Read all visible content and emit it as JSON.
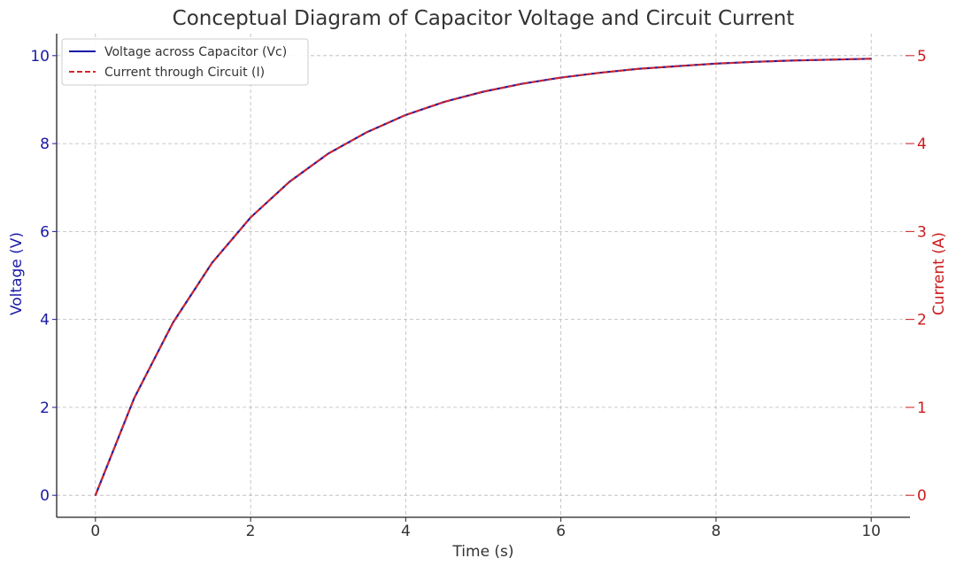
{
  "chart_data": {
    "type": "line",
    "title": "Conceptual Diagram of Capacitor Voltage and Circuit Current",
    "xlabel": "Time (s)",
    "ylabel_left": "Voltage (V)",
    "ylabel_right": "Current (A)",
    "xlim": [
      -0.5,
      10.5
    ],
    "ylim_left": [
      -0.5,
      10.5
    ],
    "ylim_right": [
      -0.25,
      5.25
    ],
    "x_ticks": [
      0,
      2,
      4,
      6,
      8,
      10
    ],
    "y_left_ticks": [
      0,
      2,
      4,
      6,
      8,
      10
    ],
    "y_right_ticks": [
      0,
      1,
      2,
      3,
      4,
      5
    ],
    "grid": true,
    "legend_position": "top-left",
    "colors": {
      "voltage": "#1a1aa6",
      "current": "#d62728",
      "left_axis_text": "#1a1aa6",
      "right_axis_text": "#cc1a1a"
    },
    "x": [
      0,
      0.5,
      1,
      1.5,
      2,
      2.5,
      3,
      3.5,
      4,
      4.5,
      5,
      5.5,
      6,
      6.5,
      7,
      7.5,
      8,
      8.5,
      9,
      9.5,
      10
    ],
    "series": [
      {
        "name": "Voltage across Capacitor (Vc)",
        "axis": "left",
        "style": "solid",
        "values": [
          0,
          2.21,
          3.93,
          5.28,
          6.32,
          7.13,
          7.77,
          8.26,
          8.65,
          8.95,
          9.18,
          9.36,
          9.5,
          9.61,
          9.7,
          9.76,
          9.82,
          9.86,
          9.89,
          9.91,
          9.93
        ]
      },
      {
        "name": "Current through Circuit (I)",
        "axis": "right",
        "style": "dashed",
        "values": [
          0,
          1.105,
          1.965,
          2.64,
          3.16,
          3.565,
          3.885,
          4.13,
          4.325,
          4.475,
          4.59,
          4.68,
          4.75,
          4.805,
          4.85,
          4.88,
          4.91,
          4.93,
          4.945,
          4.955,
          4.965
        ]
      }
    ]
  }
}
